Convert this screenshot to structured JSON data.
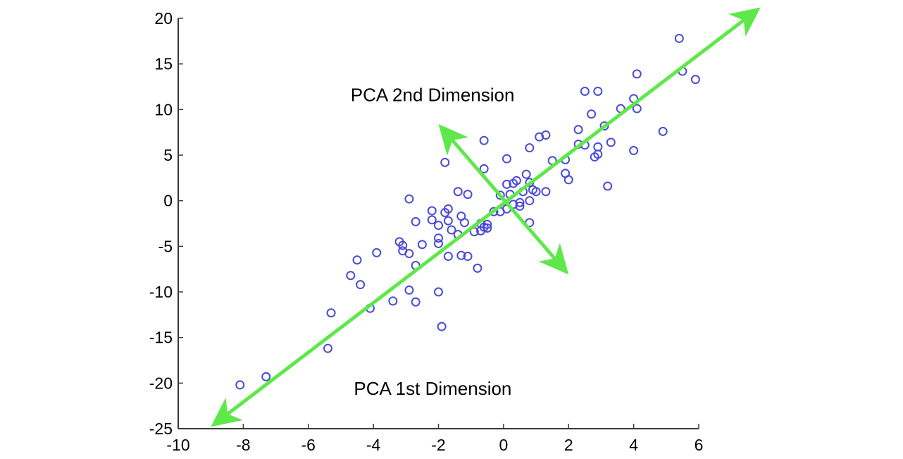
{
  "chart_data": {
    "type": "scatter",
    "title": "",
    "xlabel": "",
    "ylabel": "",
    "xlim": [
      -10,
      6
    ],
    "ylim": [
      -25,
      20
    ],
    "x_ticks": [
      -10,
      -8,
      -6,
      -4,
      -2,
      0,
      2,
      4,
      6
    ],
    "y_ticks": [
      20,
      15,
      10,
      5,
      0,
      -5,
      -10,
      -15,
      -20,
      -25
    ],
    "x_tick_labels": [
      "-10",
      "-8",
      "-6",
      "-4",
      "-2",
      "0",
      "2",
      "4",
      "6"
    ],
    "y_tick_labels": [
      "20",
      "15",
      "10",
      "5",
      "0",
      "-5",
      "-10",
      "-15",
      "-20",
      "-25"
    ],
    "grid": false,
    "point_color": "#4a4ad8",
    "arrow_color": "#5ee84a",
    "annotations": [
      {
        "text": "PCA 2nd Dimension",
        "x": -4.7,
        "y": 10.9
      },
      {
        "text": "PCA 1st Dimension",
        "x": -4.6,
        "y": -21.3
      }
    ],
    "arrows": [
      {
        "name": "pca-1st-dimension-axis",
        "from": [
          -9.0,
          -24.8
        ],
        "to": [
          7.9,
          21.2
        ],
        "double": true
      },
      {
        "name": "pca-2nd-dimension-axis",
        "from": [
          -2.0,
          8.4
        ],
        "to": [
          2.0,
          -8.1
        ],
        "double": true
      }
    ],
    "series": [
      {
        "points": [
          [
            5.4,
            17.8
          ],
          [
            5.5,
            14.2
          ],
          [
            5.9,
            13.3
          ],
          [
            4.1,
            13.9
          ],
          [
            2.5,
            12.0
          ],
          [
            2.9,
            12.0
          ],
          [
            4.0,
            11.2
          ],
          [
            4.1,
            10.1
          ],
          [
            3.6,
            10.1
          ],
          [
            2.7,
            9.5
          ],
          [
            3.1,
            8.2
          ],
          [
            4.9,
            7.6
          ],
          [
            2.3,
            7.8
          ],
          [
            1.3,
            7.2
          ],
          [
            1.1,
            7.0
          ],
          [
            0.8,
            5.8
          ],
          [
            2.3,
            6.2
          ],
          [
            2.5,
            6.1
          ],
          [
            2.9,
            5.9
          ],
          [
            3.3,
            6.4
          ],
          [
            2.9,
            5.1
          ],
          [
            2.8,
            4.8
          ],
          [
            4.0,
            5.5
          ],
          [
            1.5,
            4.4
          ],
          [
            1.9,
            4.5
          ],
          [
            -0.6,
            6.6
          ],
          [
            0.1,
            4.6
          ],
          [
            -1.8,
            4.2
          ],
          [
            -0.6,
            3.5
          ],
          [
            1.9,
            3.0
          ],
          [
            2.0,
            2.3
          ],
          [
            0.7,
            2.9
          ],
          [
            0.8,
            2.0
          ],
          [
            0.3,
            1.9
          ],
          [
            0.4,
            2.2
          ],
          [
            0.1,
            1.8
          ],
          [
            3.2,
            1.6
          ],
          [
            1.3,
            1.0
          ],
          [
            1.0,
            1.0
          ],
          [
            0.9,
            1.2
          ],
          [
            0.6,
            1.0
          ],
          [
            0.2,
            0.7
          ],
          [
            -0.1,
            0.6
          ],
          [
            -1.4,
            1.0
          ],
          [
            -1.1,
            0.7
          ],
          [
            -2.9,
            0.2
          ],
          [
            0.5,
            -0.2
          ],
          [
            0.8,
            0.0
          ],
          [
            0.3,
            -0.4
          ],
          [
            0.5,
            -0.6
          ],
          [
            0.1,
            -0.9
          ],
          [
            -0.1,
            -1.2
          ],
          [
            -0.3,
            -1.2
          ],
          [
            -1.7,
            -0.9
          ],
          [
            -2.2,
            -1.1
          ],
          [
            -1.8,
            -1.3
          ],
          [
            -1.3,
            -1.7
          ],
          [
            -2.2,
            -2.1
          ],
          [
            -1.7,
            -2.2
          ],
          [
            -2.7,
            -2.3
          ],
          [
            -2.0,
            -2.7
          ],
          [
            -1.2,
            -2.4
          ],
          [
            -0.7,
            -2.5
          ],
          [
            -0.5,
            -2.6
          ],
          [
            -0.6,
            -2.9
          ],
          [
            -0.7,
            -3.3
          ],
          [
            -0.5,
            -3.0
          ],
          [
            -1.6,
            -3.2
          ],
          [
            -0.9,
            -3.4
          ],
          [
            -1.4,
            -3.7
          ],
          [
            0.8,
            -2.4
          ],
          [
            -2.0,
            -4.1
          ],
          [
            -3.2,
            -4.5
          ],
          [
            -3.1,
            -4.9
          ],
          [
            -2.5,
            -4.8
          ],
          [
            -2.0,
            -4.7
          ],
          [
            -3.1,
            -5.5
          ],
          [
            -2.9,
            -5.8
          ],
          [
            -3.9,
            -5.7
          ],
          [
            -1.3,
            -6.0
          ],
          [
            -1.1,
            -6.1
          ],
          [
            -1.7,
            -6.1
          ],
          [
            -4.5,
            -6.5
          ],
          [
            -2.7,
            -7.1
          ],
          [
            -0.8,
            -7.4
          ],
          [
            -4.7,
            -8.2
          ],
          [
            -4.4,
            -9.2
          ],
          [
            -2.9,
            -9.8
          ],
          [
            -2.0,
            -10.0
          ],
          [
            -2.7,
            -11.1
          ],
          [
            -3.4,
            -11.0
          ],
          [
            -4.1,
            -11.8
          ],
          [
            -5.3,
            -12.3
          ],
          [
            -1.9,
            -13.8
          ],
          [
            -5.4,
            -16.2
          ],
          [
            -7.3,
            -19.3
          ],
          [
            -8.1,
            -20.2
          ]
        ]
      }
    ]
  }
}
